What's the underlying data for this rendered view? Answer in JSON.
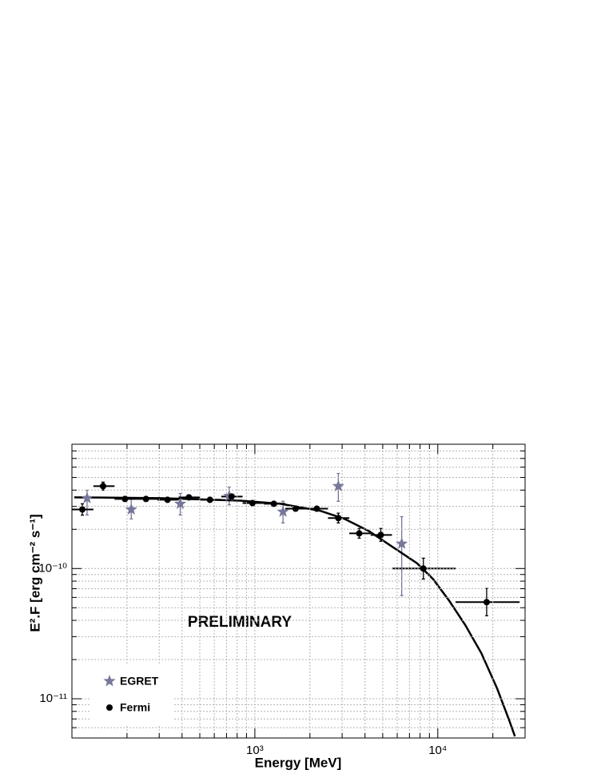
{
  "chart_data": {
    "type": "scatter",
    "xlabel": "Energy [MeV]",
    "ylabel": "E².F [erg cm⁻² s⁻¹]",
    "annotation": "PRELIMINARY",
    "annotation_color": "#ff0000",
    "xscale": "log",
    "yscale": "log",
    "xlim": [
      100,
      30000
    ],
    "ylim": [
      5e-12,
      9e-10
    ],
    "xticks": [
      {
        "value": 1000,
        "label": "10³"
      },
      {
        "value": 10000,
        "label": "10⁴"
      }
    ],
    "yticks": [
      {
        "value": 1e-11,
        "label": "10⁻¹¹"
      },
      {
        "value": 1e-10,
        "label": "10⁻¹⁰"
      }
    ],
    "xminorticks": [
      200,
      300,
      400,
      500,
      600,
      700,
      800,
      900,
      2000,
      3000,
      4000,
      5000,
      6000,
      7000,
      8000,
      9000,
      20000
    ],
    "yminorticks": [
      6e-12,
      7e-12,
      8e-12,
      9e-12,
      2e-11,
      3e-11,
      4e-11,
      5e-11,
      6e-11,
      7e-11,
      8e-11,
      9e-11,
      2e-10,
      3e-10,
      4e-10,
      5e-10,
      6e-10,
      7e-10,
      8e-10
    ],
    "grid": true,
    "legend": "lower left",
    "series": [
      {
        "name": "EGRET",
        "marker": "star",
        "color": "#77779a",
        "x": [
          121,
          211,
          391,
          724,
          1425,
          2860,
          6350
        ],
        "values": [
          3.47e-10,
          2.84e-10,
          3.14e-10,
          3.6e-10,
          2.73e-10,
          4.29e-10,
          1.55e-10
        ],
        "y_lo": [
          2.58e-10,
          2.4e-10,
          2.58e-10,
          3.09e-10,
          2.24e-10,
          3.28e-10,
          6.2e-11
        ],
        "y_hi": [
          3.99e-10,
          3.42e-10,
          3.77e-10,
          4.22e-10,
          3.28e-10,
          5.37e-10,
          2.5e-10
        ]
      },
      {
        "name": "Fermi",
        "marker": "circle",
        "color": "#000000",
        "x": [
          114,
          148,
          195,
          254,
          333,
          436,
          568,
          746,
          970,
          1270,
          1670,
          2180,
          2860,
          3720,
          4880,
          8340,
          18500
        ],
        "values": [
          2.84e-10,
          4.29e-10,
          3.42e-10,
          3.42e-10,
          3.37e-10,
          3.52e-10,
          3.37e-10,
          3.57e-10,
          3.18e-10,
          3.14e-10,
          2.88e-10,
          2.88e-10,
          2.44e-10,
          1.86e-10,
          1.81e-10,
          1e-10,
          5.52e-11
        ],
        "x_lo": [
          100,
          131,
          171,
          224,
          293,
          383,
          501,
          655,
          857,
          1121,
          1467,
          1919,
          2510,
          3284,
          4295,
          5620,
          12500
        ],
        "x_hi": [
          131,
          171,
          224,
          293,
          383,
          501,
          655,
          857,
          1121,
          1467,
          1919,
          2510,
          3284,
          4295,
          5620,
          12500,
          28000
        ],
        "y_lo": [
          2.57e-10,
          4e-10,
          3.28e-10,
          3.28e-10,
          3.23e-10,
          3.37e-10,
          3.23e-10,
          3.42e-10,
          3.05e-10,
          3.01e-10,
          2.76e-10,
          2.76e-10,
          2.24e-10,
          1.71e-10,
          1.62e-10,
          8.3e-11,
          4.34e-11
        ],
        "y_hi": [
          3.14e-10,
          4.6e-10,
          3.57e-10,
          3.57e-10,
          3.51e-10,
          3.67e-10,
          3.51e-10,
          3.72e-10,
          3.32e-10,
          3.27e-10,
          3e-10,
          3e-10,
          2.66e-10,
          2.03e-10,
          2.03e-10,
          1.2e-10,
          7.02e-11
        ]
      },
      {
        "type": "line",
        "color": "#000000",
        "x": [
          103,
          303,
          834,
          1380,
          2290,
          3100,
          4200,
          5680,
          7690,
          9420,
          11500,
          14100,
          17300,
          21100,
          24600,
          26400
        ],
        "values": [
          3.52e-10,
          3.47e-10,
          3.32e-10,
          3.14e-10,
          2.77e-10,
          2.4e-10,
          1.94e-10,
          1.46e-10,
          1.1e-10,
          8.3e-11,
          5.7e-11,
          3.7e-11,
          2.24e-11,
          1.2e-11,
          6.8e-12,
          5.15e-12
        ]
      }
    ]
  }
}
